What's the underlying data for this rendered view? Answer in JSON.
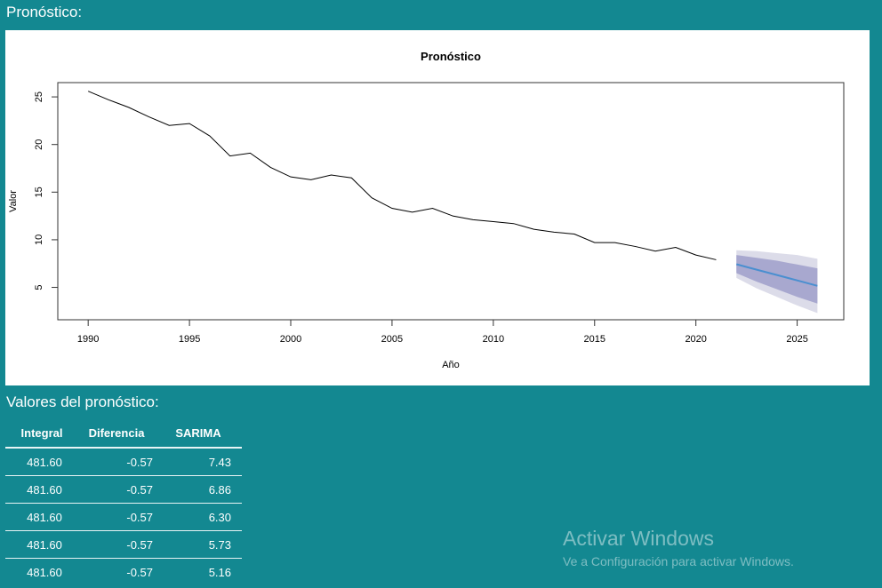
{
  "section_titles": {
    "plot": "Pronóstico:",
    "table": "Valores del pronóstico:"
  },
  "chart_data": {
    "type": "line",
    "title": "Pronóstico",
    "xlabel": "Año",
    "ylabel": "Valor",
    "xlim": [
      1988.5,
      2027.3
    ],
    "ylim": [
      1.6,
      26.5
    ],
    "x_ticks": [
      1990,
      1995,
      2000,
      2005,
      2010,
      2015,
      2020,
      2025
    ],
    "y_ticks": [
      5,
      10,
      15,
      20,
      25
    ],
    "grid": false,
    "series": [
      {
        "x": [
          1990,
          1991,
          1992,
          1993,
          1994,
          1995,
          1996,
          1997,
          1998,
          1999,
          2000,
          2001,
          2002,
          2003,
          2004,
          2005,
          2006,
          2007,
          2008,
          2009,
          2010,
          2011,
          2012,
          2013,
          2014,
          2015,
          2016,
          2017,
          2018,
          2019,
          2020,
          2021
        ],
        "y": [
          25.6,
          24.7,
          23.9,
          22.9,
          22.0,
          22.2,
          20.9,
          18.8,
          19.1,
          17.6,
          16.6,
          16.3,
          16.8,
          16.5,
          14.4,
          13.3,
          12.9,
          13.3,
          12.5,
          12.1,
          11.9,
          11.7,
          11.1,
          10.8,
          10.6,
          9.7,
          9.7,
          9.3,
          8.8,
          9.2,
          8.4,
          7.9
        ],
        "color": "#000000"
      },
      {
        "x": [
          2022,
          2023,
          2024,
          2025,
          2026
        ],
        "y": [
          7.43,
          6.86,
          6.3,
          5.73,
          5.16
        ],
        "lower80": [
          6.5,
          5.6,
          4.8,
          4.0,
          3.3
        ],
        "upper80": [
          8.4,
          8.1,
          7.8,
          7.4,
          7.0
        ],
        "lower95": [
          6.0,
          4.9,
          4.0,
          3.1,
          2.3
        ],
        "upper95": [
          8.9,
          8.8,
          8.6,
          8.4,
          8.0
        ],
        "color": "#4a8fd0"
      }
    ]
  },
  "table": {
    "headers": [
      "Integral",
      "Diferencia",
      "SARIMA"
    ],
    "rows": [
      [
        "481.60",
        "-0.57",
        "7.43"
      ],
      [
        "481.60",
        "-0.57",
        "6.86"
      ],
      [
        "481.60",
        "-0.57",
        "6.30"
      ],
      [
        "481.60",
        "-0.57",
        "5.73"
      ],
      [
        "481.60",
        "-0.57",
        "5.16"
      ]
    ]
  },
  "watermark": {
    "title": "Activar Windows",
    "subtitle": "Ve a Configuración para activar Windows."
  }
}
